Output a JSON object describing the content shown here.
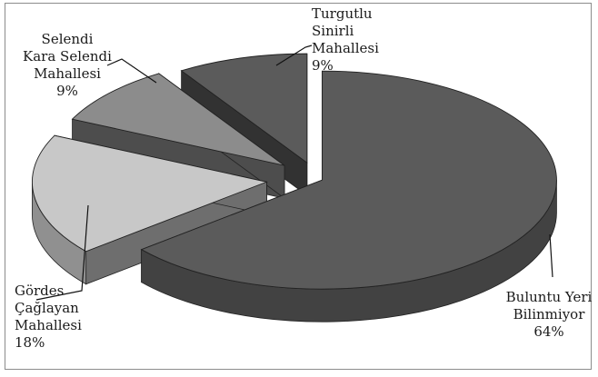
{
  "chart_data": {
    "type": "pie",
    "style": "3d-exploded",
    "slices": [
      {
        "lines": [
          "Buluntu Yeri",
          "Bilinmiyor"
        ],
        "value": 64,
        "percent_label": "64%",
        "color": "#5b5b5b"
      },
      {
        "lines": [
          "Gördes",
          "Çağlayan",
          "Mahallesi"
        ],
        "value": 18,
        "percent_label": "18%",
        "color": "#c8c8c8"
      },
      {
        "lines": [
          "Selendi",
          "Kara Selendi",
          "Mahallesi"
        ],
        "value": 9,
        "percent_label": "9%",
        "color": "#8c8c8c"
      },
      {
        "lines": [
          "Turgutlu",
          "Sinirli",
          "Mahallesi"
        ],
        "value": 9,
        "percent_label": "9%",
        "color": "#5b5b5b"
      }
    ],
    "legend": "none"
  }
}
